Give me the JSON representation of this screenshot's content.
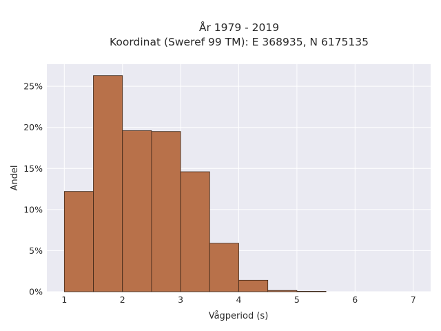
{
  "chart_data": {
    "type": "bar",
    "title_line1": "År 1979 - 2019",
    "title_line2": "Koordinat (Sweref 99 TM): E 368935, N 6175135",
    "xlabel": "Vågperiod (s)",
    "ylabel": "Andel",
    "bin_edges": [
      1,
      1.5,
      2,
      2.5,
      3,
      3.5,
      4,
      4.5,
      5,
      5.5
    ],
    "values": [
      12.2,
      26.3,
      19.6,
      19.5,
      14.6,
      5.9,
      1.4,
      0.15,
      0.05
    ],
    "xlim": [
      0.7,
      7.3
    ],
    "ylim": [
      0,
      27.7
    ],
    "xticks": [
      1,
      2,
      3,
      4,
      5,
      6,
      7
    ],
    "xtick_labels": [
      "1",
      "2",
      "3",
      "4",
      "5",
      "6",
      "7"
    ],
    "yticks": [
      0,
      5,
      10,
      15,
      20,
      25
    ],
    "ytick_labels": [
      "0%",
      "5%",
      "10%",
      "15%",
      "20%",
      "25%"
    ],
    "grid": true,
    "colors": {
      "plot_background": "#eaeaf2",
      "grid": "#ffffff",
      "bar_fill": "#b8714a",
      "bar_edge": "#3b2516"
    }
  }
}
